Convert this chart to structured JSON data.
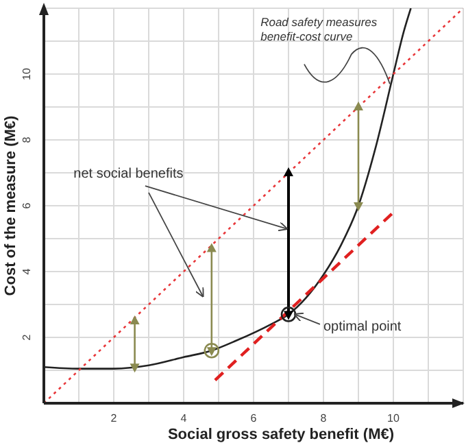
{
  "chart_data": {
    "type": "line",
    "xlabel": "Social gross safety benefit (M€)",
    "ylabel": "Cost of the measure (M€)",
    "annotations": [
      "Road safety  measures\nbenefit-cost curve",
      {
        "text": "net social benefits",
        "x": 7,
        "y": 5.3
      },
      {
        "text": "optimal point",
        "x": 7,
        "y": 2.7
      }
    ],
    "xlim": [
      0,
      12
    ],
    "ylim": [
      0,
      12
    ],
    "xticks": [
      {
        "value": 1,
        "label": null
      },
      2,
      {
        "value": 3,
        "label": null
      },
      4,
      {
        "value": 5,
        "label": null
      },
      6,
      {
        "value": 7,
        "label": null
      },
      8,
      {
        "value": 9,
        "label": null
      },
      10,
      {
        "value": 11,
        "label": null
      }
    ],
    "yticks": [
      {
        "value": 1,
        "label": null
      },
      2,
      {
        "value": 3,
        "label": null
      },
      4,
      {
        "value": 5,
        "label": null
      },
      6,
      {
        "value": 7,
        "label": null
      },
      8,
      {
        "value": 9,
        "label": null
      },
      10,
      {
        "value": 11,
        "label": null
      }
    ],
    "grid": true,
    "series": [
      {
        "color": "#222222",
        "line_style": "solid",
        "marker": "none",
        "x": [
          0,
          1,
          2,
          3,
          4,
          4.8,
          5.5,
          6.5,
          7,
          7.5,
          8,
          8.5,
          9,
          9.5,
          10,
          10.3,
          10.5
        ],
        "values": [
          1.1,
          1.05,
          1.05,
          1.15,
          1.4,
          1.6,
          1.9,
          2.4,
          2.7,
          3.2,
          3.9,
          4.8,
          6,
          7.8,
          10,
          11.3,
          12
        ]
      },
      {
        "color": "#e8373a",
        "line_style": "dotted",
        "marker": "none",
        "x": [
          0,
          12
        ],
        "values": [
          0,
          12
        ]
      },
      {
        "color": "#e02020",
        "line_style": "dashed",
        "marker": "none",
        "x": [
          4.9,
          10
        ],
        "values": [
          0.7,
          5.8
        ]
      },
      {
        "color": "#8a8a50",
        "line_style": "solid",
        "marker": "triangle",
        "x": [
          2.6,
          2.6
        ],
        "values": [
          1.1,
          2.5
        ]
      },
      {
        "color": "#8a8a50",
        "line_style": "solid",
        "marker": "triangle",
        "x": [
          4.8,
          4.8
        ],
        "values": [
          1.6,
          4.7
        ]
      },
      {
        "color": "#8a8a50",
        "line_style": "solid",
        "marker": "triangle",
        "x": [
          9,
          9
        ],
        "values": [
          6,
          9
        ]
      },
      {
        "color": "#000000",
        "line_style": "solid",
        "marker": "triangle",
        "x": [
          7,
          7
        ],
        "values": [
          2.7,
          7
        ]
      },
      {
        "type": "scatter",
        "marker": "circle",
        "colors": [
          "#8a8a50",
          "#222222"
        ],
        "x": [
          4.8,
          7
        ],
        "values": [
          1.6,
          2.7
        ]
      }
    ]
  }
}
